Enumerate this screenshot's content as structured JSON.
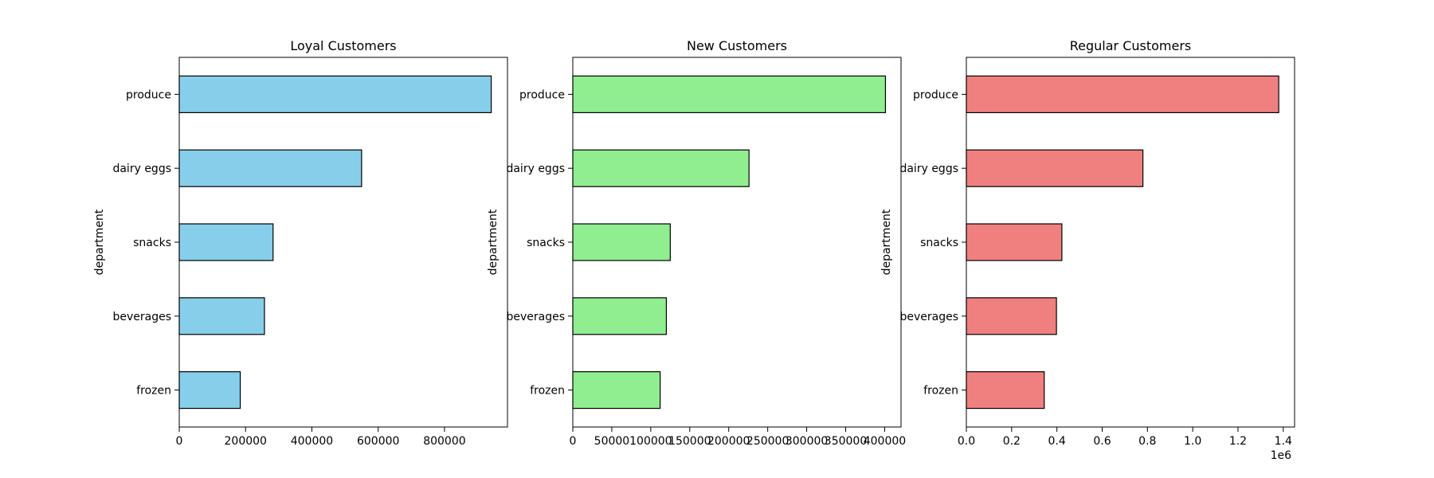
{
  "chart_data": [
    {
      "type": "bar",
      "orientation": "horizontal",
      "title": "Loyal Customers",
      "xlabel": "",
      "ylabel": "department",
      "categories": [
        "produce",
        "dairy eggs",
        "snacks",
        "beverages",
        "frozen"
      ],
      "values": [
        941000,
        550000,
        283000,
        257000,
        184000
      ],
      "color": "#87CEEB",
      "edgecolor": "#000000",
      "xlim": [
        0,
        990000
      ],
      "xticks": [
        0,
        200000,
        400000,
        600000,
        800000
      ],
      "xtick_labels": [
        "0",
        "200000",
        "400000",
        "600000",
        "800000"
      ],
      "x_offset_label": "",
      "grid": false
    },
    {
      "type": "bar",
      "orientation": "horizontal",
      "title": "New Customers",
      "xlabel": "",
      "ylabel": "department",
      "categories": [
        "produce",
        "dairy eggs",
        "snacks",
        "beverages",
        "frozen"
      ],
      "values": [
        401000,
        226000,
        125000,
        120000,
        112000
      ],
      "color": "#90EE90",
      "edgecolor": "#000000",
      "xlim": [
        0,
        421000
      ],
      "xticks": [
        0,
        50000,
        100000,
        150000,
        200000,
        250000,
        300000,
        350000,
        400000
      ],
      "xtick_labels": [
        "0",
        "50000",
        "100000",
        "150000",
        "200000",
        "250000",
        "300000",
        "350000",
        "400000"
      ],
      "x_offset_label": "",
      "grid": false
    },
    {
      "type": "bar",
      "orientation": "horizontal",
      "title": "Regular Customers",
      "xlabel": "",
      "ylabel": "department",
      "categories": [
        "produce",
        "dairy eggs",
        "snacks",
        "beverages",
        "frozen"
      ],
      "values": [
        1380000,
        780000,
        422000,
        398000,
        344000
      ],
      "color": "#F08080",
      "edgecolor": "#000000",
      "xlim": [
        0,
        1450000
      ],
      "xticks": [
        0,
        200000,
        400000,
        600000,
        800000,
        1000000,
        1200000,
        1400000
      ],
      "xtick_labels": [
        "0.0",
        "0.2",
        "0.4",
        "0.6",
        "0.8",
        "1.0",
        "1.2",
        "1.4"
      ],
      "x_offset_label": "1e6",
      "grid": false
    }
  ]
}
